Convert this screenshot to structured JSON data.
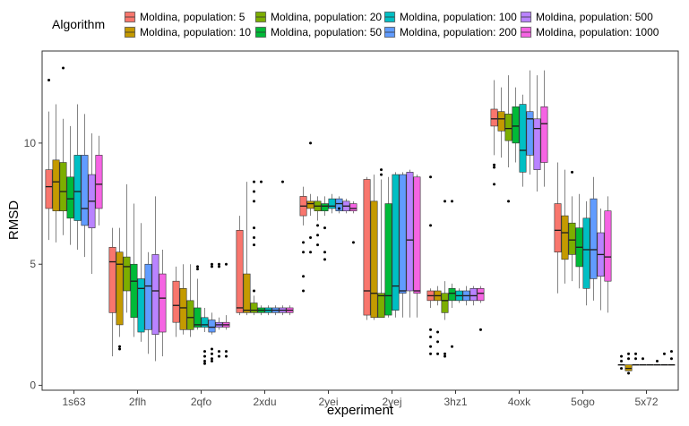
{
  "chart_data": {
    "type": "boxplot",
    "title": "",
    "xlabel": "experiment",
    "ylabel": "RMSD",
    "ylim": [
      -0.2,
      13.8
    ],
    "yticks": [
      0,
      5,
      10
    ],
    "grid": false,
    "legend": {
      "title": "Algorithm",
      "position": "top",
      "entries": [
        {
          "name": "Moldina, population: 5",
          "color": "#F8766D"
        },
        {
          "name": "Moldina, population: 10",
          "color": "#C49A00"
        },
        {
          "name": "Moldina, population: 20",
          "color": "#7CAE00"
        },
        {
          "name": "Moldina, population: 50",
          "color": "#00BA38"
        },
        {
          "name": "Moldina, population: 100",
          "color": "#00BFC4"
        },
        {
          "name": "Moldina, population: 200",
          "color": "#619CFF"
        },
        {
          "name": "Moldina, population: 500",
          "color": "#B983FF"
        },
        {
          "name": "Moldina, population: 1000",
          "color": "#F564E3"
        }
      ]
    },
    "categories": [
      "1s63",
      "2flh",
      "2qfo",
      "2xdu",
      "2yei",
      "2yej",
      "3hz1",
      "4oxk",
      "5ogo",
      "5x72"
    ],
    "boxes": [
      [
        {
          "min": 6.0,
          "q1": 7.3,
          "median": 8.2,
          "q3": 8.9,
          "max": 11.3,
          "outliers": [
            12.6
          ]
        },
        {
          "min": 5.9,
          "q1": 7.2,
          "median": 8.4,
          "q3": 9.3,
          "max": 11.6,
          "outliers": []
        },
        {
          "min": 6.2,
          "q1": 7.2,
          "median": 8.0,
          "q3": 9.2,
          "max": 11.0,
          "outliers": [
            13.1
          ]
        },
        {
          "min": 5.8,
          "q1": 6.9,
          "median": 7.7,
          "q3": 8.6,
          "max": 10.7,
          "outliers": []
        },
        {
          "min": 5.6,
          "q1": 6.8,
          "median": 8.0,
          "q3": 9.5,
          "max": 11.6,
          "outliers": []
        },
        {
          "min": 5.3,
          "q1": 6.6,
          "median": 7.3,
          "q3": 9.5,
          "max": 11.2,
          "outliers": []
        },
        {
          "min": 4.6,
          "q1": 6.5,
          "median": 7.6,
          "q3": 8.7,
          "max": 10.4,
          "outliers": []
        },
        {
          "min": 6.6,
          "q1": 7.3,
          "median": 8.3,
          "q3": 9.5,
          "max": 10.3,
          "outliers": []
        }
      ],
      [
        {
          "min": 1.2,
          "q1": 3.0,
          "median": 5.1,
          "q3": 5.7,
          "max": 6.5,
          "outliers": []
        },
        {
          "min": 2.0,
          "q1": 2.5,
          "median": 5.0,
          "q3": 5.5,
          "max": 6.5,
          "outliers": [
            1.6,
            1.5
          ]
        },
        {
          "min": 3.0,
          "q1": 3.9,
          "median": 4.9,
          "q3": 5.3,
          "max": 8.3,
          "outliers": []
        },
        {
          "min": 2.0,
          "q1": 2.8,
          "median": 4.3,
          "q3": 5.0,
          "max": 7.5,
          "outliers": []
        },
        {
          "min": 1.8,
          "q1": 2.2,
          "median": 4.0,
          "q3": 4.4,
          "max": 6.7,
          "outliers": []
        },
        {
          "min": 1.3,
          "q1": 2.3,
          "median": 4.1,
          "q3": 5.0,
          "max": 5.5,
          "outliers": []
        },
        {
          "min": 1.0,
          "q1": 2.1,
          "median": 3.9,
          "q3": 5.4,
          "max": 7.8,
          "outliers": []
        },
        {
          "min": 1.2,
          "q1": 2.2,
          "median": 3.6,
          "q3": 4.6,
          "max": 5.6,
          "outliers": []
        }
      ],
      [
        {
          "min": 2.0,
          "q1": 2.6,
          "median": 3.3,
          "q3": 4.3,
          "max": 4.9,
          "outliers": []
        },
        {
          "min": 2.1,
          "q1": 2.3,
          "median": 3.2,
          "q3": 4.0,
          "max": 5.0,
          "outliers": []
        },
        {
          "min": 2.0,
          "q1": 2.3,
          "median": 2.8,
          "q3": 3.5,
          "max": 5.0,
          "outliers": []
        },
        {
          "min": 2.3,
          "q1": 2.4,
          "median": 2.5,
          "q3": 3.2,
          "max": 4.4,
          "outliers": [
            4.9,
            4.8
          ]
        },
        {
          "min": 2.2,
          "q1": 2.4,
          "median": 2.5,
          "q3": 2.8,
          "max": 3.2,
          "outliers": [
            0.9,
            1.0,
            1.2,
            1.4
          ]
        },
        {
          "min": 2.1,
          "q1": 2.2,
          "median": 2.4,
          "q3": 2.7,
          "max": 3.0,
          "outliers": [
            1.0,
            1.1,
            1.3,
            1.5,
            4.9,
            5.0
          ]
        },
        {
          "min": 2.3,
          "q1": 2.4,
          "median": 2.5,
          "q3": 2.6,
          "max": 2.8,
          "outliers": [
            4.9,
            5.0,
            1.2,
            1.4
          ]
        },
        {
          "min": 2.3,
          "q1": 2.4,
          "median": 2.5,
          "q3": 2.6,
          "max": 2.9,
          "outliers": [
            1.2,
            1.4,
            5.0
          ]
        }
      ],
      [
        {
          "min": 2.9,
          "q1": 3.0,
          "median": 3.2,
          "q3": 6.4,
          "max": 7.0,
          "outliers": []
        },
        {
          "min": 2.9,
          "q1": 3.0,
          "median": 3.1,
          "q3": 4.6,
          "max": 8.4,
          "outliers": []
        },
        {
          "min": 2.9,
          "q1": 3.0,
          "median": 3.1,
          "q3": 3.4,
          "max": 3.7,
          "outliers": [
            8.4,
            8.0,
            7.6,
            6.5,
            6.1,
            5.8,
            3.9
          ]
        },
        {
          "min": 2.9,
          "q1": 3.0,
          "median": 3.1,
          "q3": 3.2,
          "max": 3.3,
          "outliers": [
            8.4
          ]
        },
        {
          "min": 2.9,
          "q1": 3.0,
          "median": 3.1,
          "q3": 3.2,
          "max": 3.3,
          "outliers": []
        },
        {
          "min": 2.9,
          "q1": 3.0,
          "median": 3.1,
          "q3": 3.2,
          "max": 3.3,
          "outliers": []
        },
        {
          "min": 2.9,
          "q1": 3.0,
          "median": 3.1,
          "q3": 3.2,
          "max": 3.3,
          "outliers": [
            8.4
          ]
        },
        {
          "min": 2.9,
          "q1": 3.0,
          "median": 3.1,
          "q3": 3.2,
          "max": 3.3,
          "outliers": []
        }
      ],
      [
        {
          "min": 6.6,
          "q1": 7.0,
          "median": 7.4,
          "q3": 7.8,
          "max": 8.2,
          "outliers": [
            3.9,
            4.5,
            5.5,
            5.9
          ]
        },
        {
          "min": 7.0,
          "q1": 7.3,
          "median": 7.5,
          "q3": 7.6,
          "max": 7.9,
          "outliers": [
            10.0,
            5.5,
            6.1
          ]
        },
        {
          "min": 6.8,
          "q1": 7.2,
          "median": 7.4,
          "q3": 7.6,
          "max": 7.8,
          "outliers": [
            5.8,
            6.2,
            6.6
          ]
        },
        {
          "min": 7.0,
          "q1": 7.2,
          "median": 7.4,
          "q3": 7.5,
          "max": 7.8,
          "outliers": [
            5.2,
            5.5,
            6.5
          ]
        },
        {
          "min": 7.1,
          "q1": 7.3,
          "median": 7.4,
          "q3": 7.7,
          "max": 7.9,
          "outliers": []
        },
        {
          "min": 7.1,
          "q1": 7.2,
          "median": 7.5,
          "q3": 7.7,
          "max": 7.8,
          "outliers": [
            7.3
          ]
        },
        {
          "min": 7.1,
          "q1": 7.2,
          "median": 7.4,
          "q3": 7.6,
          "max": 7.7,
          "outliers": []
        },
        {
          "min": 7.1,
          "q1": 7.2,
          "median": 7.3,
          "q3": 7.5,
          "max": 7.6,
          "outliers": [
            5.9
          ]
        }
      ],
      [
        {
          "min": 2.7,
          "q1": 2.9,
          "median": 3.9,
          "q3": 8.5,
          "max": 8.6,
          "outliers": []
        },
        {
          "min": 2.7,
          "q1": 2.8,
          "median": 3.8,
          "q3": 7.6,
          "max": 8.7,
          "outliers": []
        },
        {
          "min": 2.8,
          "q1": 2.8,
          "median": 3.7,
          "q3": 3.8,
          "max": 8.5,
          "outliers": [
            8.9,
            8.7
          ]
        },
        {
          "min": 2.8,
          "q1": 2.9,
          "median": 3.7,
          "q3": 7.5,
          "max": 8.6,
          "outliers": []
        },
        {
          "min": 2.8,
          "q1": 3.1,
          "median": 4.1,
          "q3": 8.7,
          "max": 8.8,
          "outliers": []
        },
        {
          "min": 2.8,
          "q1": 3.8,
          "median": 3.9,
          "q3": 8.7,
          "max": 8.8,
          "outliers": []
        },
        {
          "min": 2.8,
          "q1": 3.9,
          "median": 6.0,
          "q3": 8.8,
          "max": 8.9,
          "outliers": []
        },
        {
          "min": 2.8,
          "q1": 3.8,
          "median": 3.9,
          "q3": 8.6,
          "max": 8.7,
          "outliers": []
        }
      ],
      [
        {
          "min": 3.2,
          "q1": 3.5,
          "median": 3.7,
          "q3": 3.9,
          "max": 4.0,
          "outliers": [
            8.6,
            6.6,
            2.3,
            2.0,
            1.6,
            1.3
          ]
        },
        {
          "min": 3.3,
          "q1": 3.5,
          "median": 3.7,
          "q3": 3.9,
          "max": 4.1,
          "outliers": [
            2.2,
            1.8,
            1.3
          ]
        },
        {
          "min": 2.7,
          "q1": 3.0,
          "median": 3.5,
          "q3": 3.8,
          "max": 4.3,
          "outliers": [
            7.6,
            1.3,
            1.2
          ]
        },
        {
          "min": 3.2,
          "q1": 3.5,
          "median": 3.8,
          "q3": 4.0,
          "max": 4.2,
          "outliers": [
            7.6,
            1.6
          ]
        },
        {
          "min": 3.4,
          "q1": 3.5,
          "median": 3.7,
          "q3": 3.9,
          "max": 4.0,
          "outliers": []
        },
        {
          "min": 3.3,
          "q1": 3.5,
          "median": 3.7,
          "q3": 3.9,
          "max": 4.1,
          "outliers": []
        },
        {
          "min": 3.3,
          "q1": 3.5,
          "median": 3.7,
          "q3": 4.0,
          "max": 4.1,
          "outliers": []
        },
        {
          "min": 3.4,
          "q1": 3.5,
          "median": 3.8,
          "q3": 4.0,
          "max": 4.1,
          "outliers": [
            2.3
          ]
        }
      ],
      [
        {
          "min": 9.5,
          "q1": 10.7,
          "median": 11.0,
          "q3": 11.4,
          "max": 12.6,
          "outliers": [
            9.1,
            9.0,
            8.3
          ]
        },
        {
          "min": 9.4,
          "q1": 10.5,
          "median": 11.0,
          "q3": 11.3,
          "max": 12.3,
          "outliers": []
        },
        {
          "min": 9.0,
          "q1": 10.1,
          "median": 10.6,
          "q3": 11.2,
          "max": 12.8,
          "outliers": [
            7.6
          ]
        },
        {
          "min": 9.2,
          "q1": 10.0,
          "median": 10.7,
          "q3": 11.5,
          "max": 12.3,
          "outliers": []
        },
        {
          "min": 8.2,
          "q1": 8.8,
          "median": 9.7,
          "q3": 11.6,
          "max": 12.0,
          "outliers": []
        },
        {
          "min": 8.7,
          "q1": 9.5,
          "median": 11.0,
          "q3": 11.3,
          "max": 13.0,
          "outliers": []
        },
        {
          "min": 8.0,
          "q1": 8.9,
          "median": 10.6,
          "q3": 11.0,
          "max": 12.8,
          "outliers": []
        },
        {
          "min": 8.2,
          "q1": 9.2,
          "median": 10.8,
          "q3": 11.5,
          "max": 13.0,
          "outliers": []
        }
      ],
      [
        {
          "min": 3.8,
          "q1": 5.5,
          "median": 6.4,
          "q3": 7.5,
          "max": 9.2,
          "outliers": []
        },
        {
          "min": 4.2,
          "q1": 5.2,
          "median": 6.3,
          "q3": 7.0,
          "max": 8.9,
          "outliers": []
        },
        {
          "min": 4.3,
          "q1": 5.4,
          "median": 6.0,
          "q3": 6.7,
          "max": 7.8,
          "outliers": [
            8.8
          ]
        },
        {
          "min": 4.0,
          "q1": 4.9,
          "median": 5.7,
          "q3": 6.5,
          "max": 7.9,
          "outliers": []
        },
        {
          "min": 3.3,
          "q1": 4.0,
          "median": 5.6,
          "q3": 6.9,
          "max": 7.6,
          "outliers": []
        },
        {
          "min": 3.5,
          "q1": 4.4,
          "median": 5.6,
          "q3": 7.7,
          "max": 8.6,
          "outliers": []
        },
        {
          "min": 3.1,
          "q1": 4.5,
          "median": 5.4,
          "q3": 6.3,
          "max": 7.3,
          "outliers": []
        },
        {
          "min": 3.0,
          "q1": 4.3,
          "median": 5.3,
          "q3": 7.2,
          "max": 7.8,
          "outliers": []
        }
      ],
      [
        {
          "min": 0.85,
          "q1": 0.85,
          "median": 0.85,
          "q3": 0.85,
          "max": 0.85,
          "outliers": [
            1.2,
            1.0,
            0.7
          ]
        },
        {
          "min": 0.6,
          "q1": 0.6,
          "median": 0.7,
          "q3": 0.85,
          "max": 0.85,
          "outliers": [
            1.3,
            1.1,
            0.5
          ]
        },
        {
          "min": 0.85,
          "q1": 0.85,
          "median": 0.85,
          "q3": 0.85,
          "max": 0.85,
          "outliers": [
            1.3,
            1.1
          ]
        },
        {
          "min": 0.85,
          "q1": 0.85,
          "median": 0.85,
          "q3": 0.85,
          "max": 0.85,
          "outliers": [
            1.1
          ]
        },
        {
          "min": 0.85,
          "q1": 0.85,
          "median": 0.85,
          "q3": 0.85,
          "max": 0.85,
          "outliers": []
        },
        {
          "min": 0.85,
          "q1": 0.85,
          "median": 0.85,
          "q3": 0.85,
          "max": 0.85,
          "outliers": [
            1.0
          ]
        },
        {
          "min": 0.85,
          "q1": 0.85,
          "median": 0.85,
          "q3": 0.85,
          "max": 0.85,
          "outliers": [
            1.3
          ]
        },
        {
          "min": 0.85,
          "q1": 0.85,
          "median": 0.85,
          "q3": 0.85,
          "max": 0.85,
          "outliers": [
            1.4,
            1.1
          ]
        }
      ]
    ]
  }
}
